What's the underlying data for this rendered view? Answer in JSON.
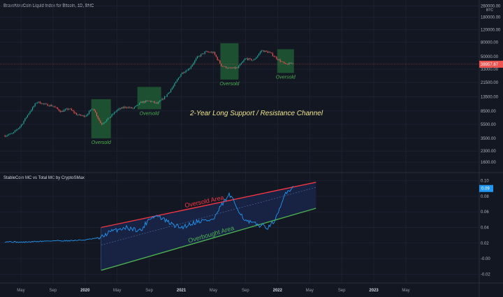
{
  "price_pane": {
    "title": "BraveNewCoin Liquid Index for Bitcoin, 1D, BNC",
    "currency": "BTC",
    "current_price_label": "38957.87",
    "y_ticks": [
      {
        "label": "260000.00",
        "value": 260000
      },
      {
        "label": "180000.00",
        "value": 180000
      },
      {
        "label": "120000.00",
        "value": 120000
      },
      {
        "label": "80000.00",
        "value": 80000
      },
      {
        "label": "50000.00",
        "value": 50000
      },
      {
        "label": "33000.00",
        "value": 33000
      },
      {
        "label": "21500.00",
        "value": 21500
      },
      {
        "label": "13500.00",
        "value": 13500
      },
      {
        "label": "8500.00",
        "value": 8500
      },
      {
        "label": "5500.00",
        "value": 5500
      },
      {
        "label": "3500.00",
        "value": 3500
      },
      {
        "label": "2300.00",
        "value": 2300
      },
      {
        "label": "1600.00",
        "value": 1600
      }
    ],
    "annotation": "2-Year Long Support / Resistance Channel",
    "oversold_labels": [
      "Oversold",
      "Oversold",
      "Oversold",
      "Oversold"
    ]
  },
  "indicator_pane": {
    "title": "StableCoin MC vs Total MC by CryptoSMax",
    "current_value_label": "0.09",
    "y_ticks": [
      {
        "label": "0.10",
        "value": 0.1
      },
      {
        "label": "0.08",
        "value": 0.08
      },
      {
        "label": "0.06",
        "value": 0.06
      },
      {
        "label": "0.04",
        "value": 0.04
      },
      {
        "label": "0.02",
        "value": 0.02
      },
      {
        "label": "-0.00",
        "value": 0.0
      },
      {
        "label": "-0.02",
        "value": -0.02
      }
    ],
    "top_line_label": "Oversold Area",
    "bottom_line_label": "Overbought Area"
  },
  "x_axis": {
    "ticks": [
      "May",
      "Sep",
      "2020",
      "May",
      "Sep",
      "2021",
      "May",
      "Sep",
      "2022",
      "May",
      "Sep",
      "2023",
      "May"
    ]
  },
  "colors": {
    "background": "#131722",
    "up": "#26a69a",
    "down": "#ef5350",
    "indicator": "#2196f3",
    "resistance": "#f23645",
    "support": "#4caf50",
    "annotation": "#f0e68c",
    "oversold_box": "#1e5a32",
    "oversold_text": "#4caf50",
    "channel_fill": "#1a2547"
  },
  "chart_data": [
    {
      "type": "candlestick",
      "title": "BraveNewCoin Liquid Index for Bitcoin, 1D, BNC",
      "y_scale": "log",
      "x": [
        "2019-03",
        "2019-04",
        "2019-05",
        "2019-06",
        "2019-07",
        "2019-08",
        "2019-09",
        "2019-10",
        "2019-11",
        "2019-12",
        "2020-01",
        "2020-02",
        "2020-03",
        "2020-04",
        "2020-05",
        "2020-06",
        "2020-07",
        "2020-08",
        "2020-09",
        "2020-10",
        "2020-11",
        "2020-12",
        "2021-01",
        "2021-02",
        "2021-03",
        "2021-04",
        "2021-05",
        "2021-06",
        "2021-07",
        "2021-08",
        "2021-09",
        "2021-10",
        "2021-11",
        "2021-12",
        "2022-01",
        "2022-02",
        "2022-03"
      ],
      "values": [
        3800,
        4100,
        5300,
        8000,
        11500,
        10500,
        10000,
        8300,
        9200,
        7500,
        7200,
        9400,
        5500,
        6800,
        8800,
        9700,
        9200,
        11300,
        11800,
        10800,
        13500,
        19000,
        29000,
        34000,
        49000,
        58000,
        57000,
        37000,
        34000,
        34500,
        47000,
        44000,
        61000,
        57000,
        46000,
        38500,
        41000
      ],
      "current_value": 38957.87,
      "oversold_zones": [
        "2020-03",
        "2020-09",
        "2021-07",
        "2022-02"
      ],
      "annotation": "2-Year Long Support / Resistance Channel"
    },
    {
      "type": "line",
      "title": "StableCoin MC vs Total MC by CryptoSMax",
      "x": [
        "2019-03",
        "2019-05",
        "2019-07",
        "2019-09",
        "2019-11",
        "2020-01",
        "2020-03",
        "2020-04",
        "2020-06",
        "2020-08",
        "2020-09",
        "2020-10",
        "2020-12",
        "2021-01",
        "2021-03",
        "2021-05",
        "2021-06",
        "2021-07",
        "2021-09",
        "2021-10",
        "2021-12",
        "2022-01",
        "2022-02",
        "2022-03"
      ],
      "values": [
        0.022,
        0.021,
        0.022,
        0.023,
        0.023,
        0.024,
        0.027,
        0.034,
        0.04,
        0.036,
        0.052,
        0.055,
        0.043,
        0.04,
        0.048,
        0.05,
        0.068,
        0.082,
        0.048,
        0.045,
        0.04,
        0.055,
        0.085,
        0.092
      ],
      "current_value": 0.09,
      "ylim": [
        -0.02,
        0.1
      ],
      "channel": {
        "start": "2020-03",
        "end": "2022-03",
        "top": [
          0.04,
          0.092
        ],
        "bottom": [
          0.02,
          0.06
        ],
        "top_label": "Oversold Area",
        "bottom_label": "Overbought Area"
      }
    }
  ]
}
